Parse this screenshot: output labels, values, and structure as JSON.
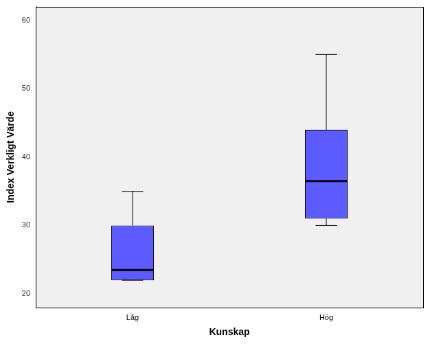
{
  "chart_data": {
    "type": "boxplot",
    "x_label": "Kunskap",
    "y_label": "Index Verkligt Värde",
    "categories": [
      "Låg",
      "Hög"
    ],
    "values": [
      {
        "min": 22,
        "q1": 22,
        "median": 23.5,
        "q3": 30,
        "max": 35
      },
      {
        "min": 30,
        "q1": 31,
        "median": 36.5,
        "q3": 44,
        "max": 55
      }
    ],
    "color": "#5b5bff",
    "ylim": [
      18,
      62
    ],
    "yticks": [
      20,
      30,
      40,
      50,
      60
    ],
    "grid": false
  }
}
